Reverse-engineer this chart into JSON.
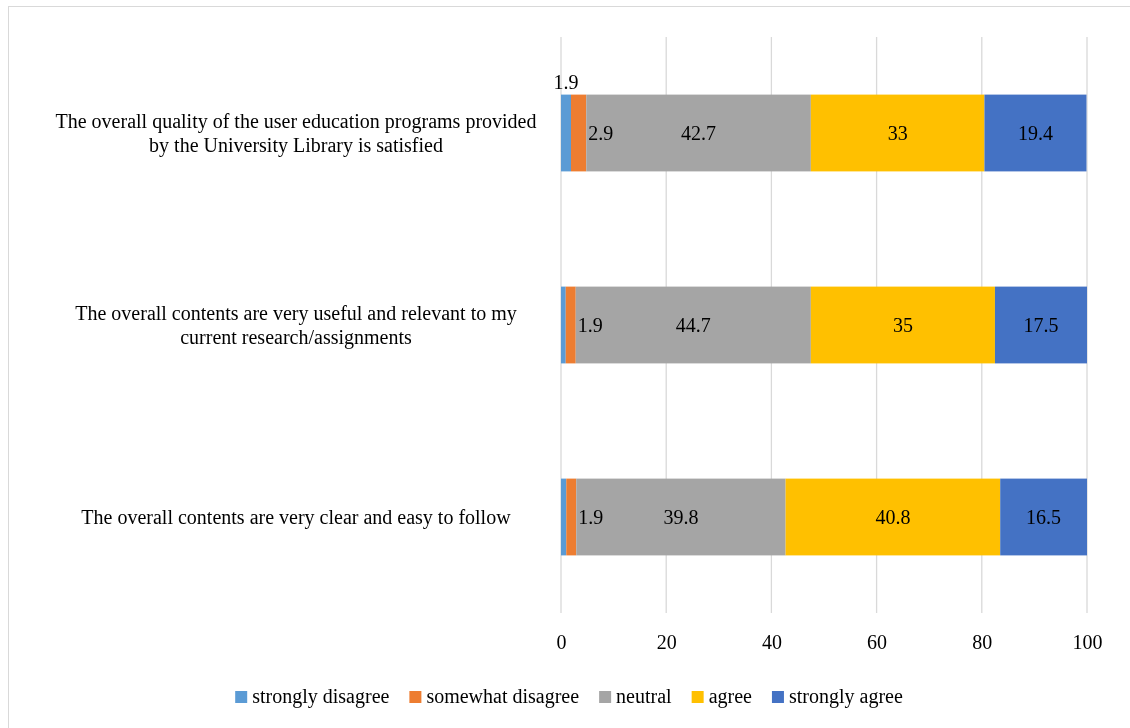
{
  "chart_data": {
    "type": "bar",
    "orientation": "horizontal",
    "stacked": true,
    "categories": [
      "The overall quality of the user education programs provided by the University Library is satisfied",
      "The overall contents are very useful and relevant to my current research/assignments",
      "The overall contents are very clear and easy to follow"
    ],
    "series": [
      {
        "name": "strongly disagree",
        "color": "#5b9bd5",
        "values": [
          1.9,
          0.9,
          1.0
        ],
        "value_labels": [
          "1.9",
          null,
          null
        ]
      },
      {
        "name": "somewhat disagree",
        "color": "#ed7d31",
        "values": [
          2.9,
          1.9,
          1.9
        ],
        "value_labels": [
          "2.9",
          "1.9",
          "1.9"
        ]
      },
      {
        "name": "neutral",
        "color": "#a5a5a5",
        "values": [
          42.7,
          44.7,
          39.8
        ],
        "value_labels": [
          "42.7",
          "44.7",
          "39.8"
        ]
      },
      {
        "name": "agree",
        "color": "#ffc000",
        "values": [
          33,
          35,
          40.8
        ],
        "value_labels": [
          "33",
          "35",
          "40.8"
        ]
      },
      {
        "name": "strongly agree",
        "color": "#4472c4",
        "values": [
          19.4,
          17.5,
          16.5
        ],
        "value_labels": [
          "19.4",
          "17.5",
          "16.5"
        ]
      }
    ],
    "xlim": [
      0,
      100
    ],
    "xticks": [
      0,
      20,
      40,
      60,
      80,
      100
    ],
    "grid": "x",
    "legend": "bottom"
  }
}
